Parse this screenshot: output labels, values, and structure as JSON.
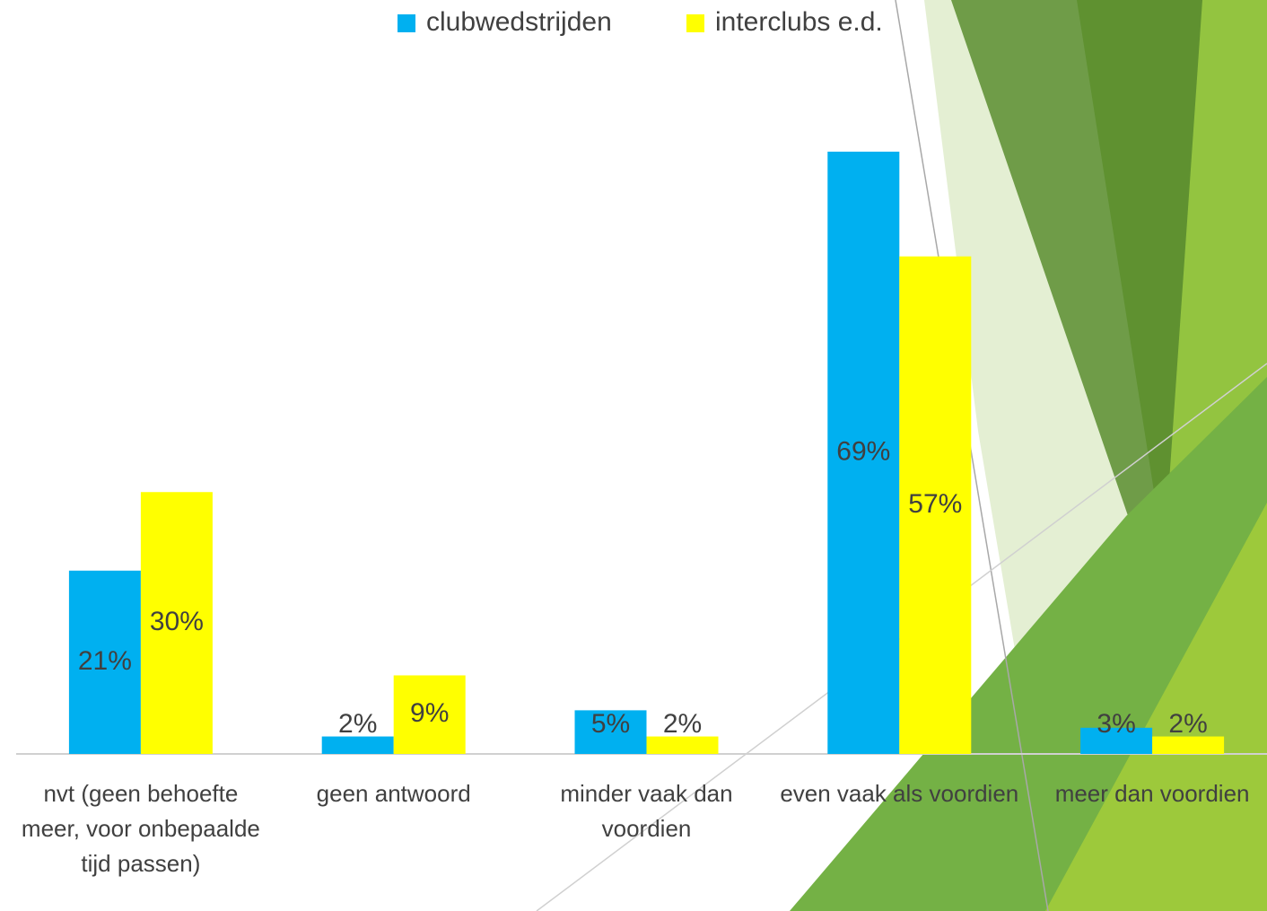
{
  "chart_data": {
    "type": "bar",
    "categories": [
      "nvt (geen behoefte meer, voor onbepaalde tijd passen)",
      "geen antwoord",
      "minder vaak dan voordien",
      "even vaak als voordien",
      "meer dan voordien"
    ],
    "series": [
      {
        "name": "clubwedstrijden",
        "color": "#00b0f0",
        "values": [
          21,
          2,
          5,
          69,
          3
        ],
        "value_labels": [
          "21%",
          "2%",
          "5%",
          "69%",
          "3%"
        ]
      },
      {
        "name": "interclubs e.d.",
        "color": "#ffff00",
        "values": [
          30,
          9,
          2,
          57,
          2
        ],
        "value_labels": [
          "30%",
          "9%",
          "2%",
          "57%",
          "2%"
        ]
      }
    ],
    "ylim": [
      0,
      80
    ],
    "legend": "top"
  }
}
